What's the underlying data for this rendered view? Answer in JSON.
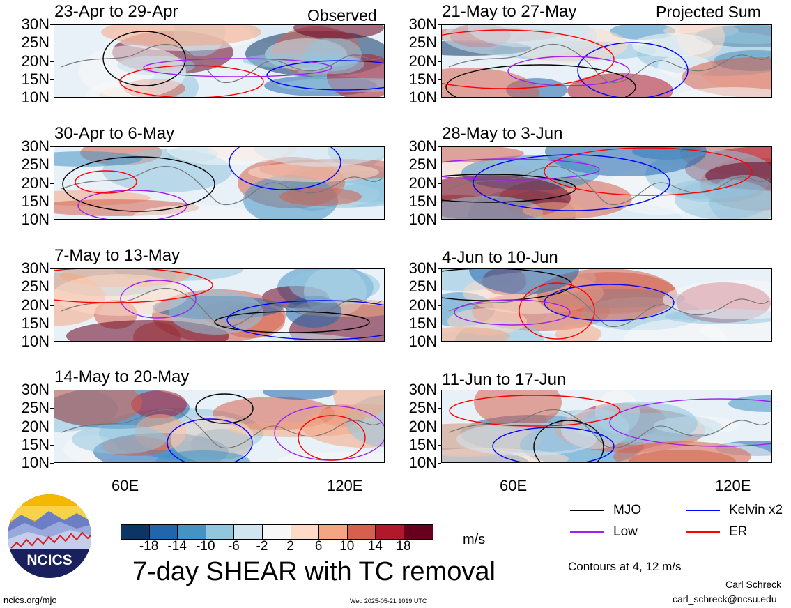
{
  "labels": {
    "observed": "Observed",
    "projected": "Projected Sum",
    "units": "m/s",
    "main_title": "7-day SHEAR with TC removal",
    "contours": "Contours at 4, 12 m/s",
    "author_name": "Carl Schreck",
    "author_email": "carl_schreck@ncsu.edu",
    "site": "ncics.org/mjo",
    "timestamp": "Wed 2025-05-21 1019 UTC",
    "logo_text": "NCICS"
  },
  "lat_labels": [
    "30N",
    "25N",
    "20N",
    "15N",
    "10N"
  ],
  "lon_labels": [
    "60E",
    "120E"
  ],
  "panels_left": [
    {
      "title": "23-Apr to 29-Apr"
    },
    {
      "title": "30-Apr to 6-May"
    },
    {
      "title": "7-May to 13-May"
    },
    {
      "title": "14-May to 20-May"
    }
  ],
  "panels_right": [
    {
      "title": "21-May to 27-May"
    },
    {
      "title": "28-May to 3-Jun"
    },
    {
      "title": "4-Jun to 10-Jun"
    },
    {
      "title": "11-Jun to 17-Jun"
    }
  ],
  "colorbar": {
    "ticks": [
      "-18",
      "-14",
      "-10",
      "-6",
      "-2",
      "2",
      "6",
      "10",
      "14",
      "18"
    ],
    "colors": [
      "#0b3565",
      "#2166ac",
      "#4393c3",
      "#92c5de",
      "#d1e5f0",
      "#f7f7f7",
      "#fddbc7",
      "#f4a582",
      "#d6604d",
      "#b2182b",
      "#67001f"
    ]
  },
  "legend": [
    {
      "label": "MJO",
      "color": "#000000"
    },
    {
      "label": "Kelvin x2",
      "color": "#0000ff"
    },
    {
      "label": "Low",
      "color": "#a020f0"
    },
    {
      "label": "ER",
      "color": "#ff0000"
    }
  ],
  "chart_data": {
    "type": "heatmap",
    "title": "7-day SHEAR with TC removal",
    "units": "m/s",
    "xlim": [
      40,
      130
    ],
    "ylim": [
      10,
      30
    ],
    "x_ticks": [
      "60E",
      "120E"
    ],
    "y_ticks": [
      "30N",
      "25N",
      "20N",
      "15N",
      "10N"
    ],
    "contour_levels": [
      4,
      12
    ],
    "color_levels": [
      -18,
      -14,
      -10,
      -6,
      -2,
      2,
      6,
      10,
      14,
      18
    ],
    "panels": [
      {
        "title": "23-Apr to 29-Apr",
        "kind": "Observed"
      },
      {
        "title": "30-Apr to 6-May",
        "kind": "Observed"
      },
      {
        "title": "7-May to 13-May",
        "kind": "Observed"
      },
      {
        "title": "14-May to 20-May",
        "kind": "Observed"
      },
      {
        "title": "21-May to 27-May",
        "kind": "Projected Sum"
      },
      {
        "title": "28-May to 3-Jun",
        "kind": "Projected Sum"
      },
      {
        "title": "4-Jun to 10-Jun",
        "kind": "Projected Sum"
      },
      {
        "title": "11-Jun to 17-Jun",
        "kind": "Projected Sum"
      }
    ]
  }
}
